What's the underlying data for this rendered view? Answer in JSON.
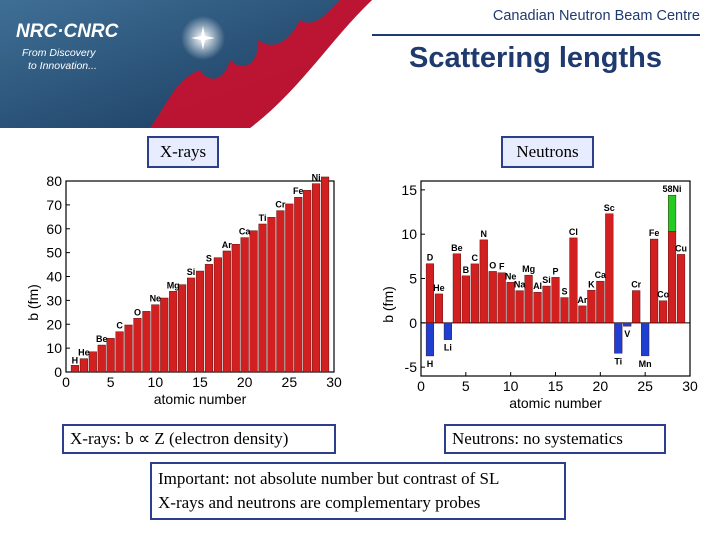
{
  "header": {
    "org_title": "Canadian Neutron Beam Centre",
    "slide_title": "Scattering lengths",
    "logo_text": "NRC·CNRC",
    "tagline_line1": "From Discovery",
    "tagline_line2": "to Innovation...",
    "accent_color": "#c8102e",
    "title_color": "#1f3a6e"
  },
  "panels": {
    "xray_tag": "X-rays",
    "neutron_tag": "Neutrons",
    "xray_caption": "X-rays: b ∝ Z (electron density)",
    "neutron_caption": "Neutrons: no systematics",
    "note_line1": "Important: not absolute number but contrast of SL",
    "note_line2": "X-rays and neutrons are complementary probes"
  },
  "chart_data": [
    {
      "type": "bar",
      "xlabel": "atomic number",
      "ylabel": "b (fm)",
      "xlim": [
        0,
        30
      ],
      "ylim": [
        0,
        80
      ],
      "xticks": [
        0,
        5,
        10,
        15,
        20,
        25,
        30
      ],
      "yticks": [
        0,
        10,
        20,
        30,
        40,
        50,
        60,
        70,
        80
      ],
      "bar_color": "#d21f1f",
      "x": [
        1,
        2,
        3,
        4,
        5,
        6,
        7,
        8,
        9,
        10,
        11,
        12,
        13,
        14,
        15,
        16,
        17,
        18,
        19,
        20,
        21,
        22,
        23,
        24,
        25,
        26,
        27,
        28,
        29
      ],
      "values": [
        2.8,
        5.6,
        8.5,
        11.3,
        14.1,
        16.9,
        19.7,
        22.5,
        25.4,
        28.2,
        31.0,
        33.8,
        36.6,
        39.4,
        42.3,
        45.1,
        47.9,
        50.7,
        53.5,
        56.3,
        59.2,
        62.0,
        64.8,
        67.6,
        70.4,
        73.2,
        76.1,
        78.9,
        81.7
      ],
      "element_labels": [
        {
          "label": "H",
          "x": 1
        },
        {
          "label": "He",
          "x": 2
        },
        {
          "label": "Be",
          "x": 4
        },
        {
          "label": "C",
          "x": 6
        },
        {
          "label": "O",
          "x": 8
        },
        {
          "label": "Ne",
          "x": 10
        },
        {
          "label": "Mg",
          "x": 12
        },
        {
          "label": "Si",
          "x": 14
        },
        {
          "label": "S",
          "x": 16
        },
        {
          "label": "Ar",
          "x": 18
        },
        {
          "label": "Ca",
          "x": 20
        },
        {
          "label": "Ti",
          "x": 22
        },
        {
          "label": "Cr",
          "x": 24
        },
        {
          "label": "Fe",
          "x": 26
        },
        {
          "label": "Ni",
          "x": 28
        }
      ]
    },
    {
      "type": "bar",
      "xlabel": "atomic number",
      "ylabel": "b (fm)",
      "xlim": [
        0,
        30
      ],
      "ylim": [
        -6,
        16
      ],
      "xticks": [
        0,
        5,
        10,
        15,
        20,
        25,
        30
      ],
      "yticks": [
        -5,
        0,
        5,
        10,
        15
      ],
      "positive_color": "#d21f1f",
      "negative_color": "#1f3fd2",
      "highlight_color": "#22cc22",
      "x": [
        1,
        2,
        3,
        4,
        5,
        6,
        7,
        8,
        9,
        10,
        11,
        12,
        13,
        14,
        15,
        16,
        17,
        18,
        19,
        20,
        21,
        22,
        23,
        24,
        25,
        26,
        27,
        28,
        29
      ],
      "values": [
        -3.74,
        3.26,
        -1.9,
        7.79,
        5.3,
        6.65,
        9.36,
        5.8,
        5.65,
        4.57,
        3.63,
        5.38,
        3.45,
        4.15,
        5.13,
        2.85,
        9.58,
        1.91,
        3.67,
        4.7,
        12.3,
        -3.44,
        -0.38,
        3.64,
        -3.73,
        9.45,
        2.49,
        10.3,
        7.72
      ],
      "extra_segments": [
        {
          "x": 1,
          "from": 0,
          "to": 6.67,
          "label": "D"
        },
        {
          "x": 28,
          "from": 10.3,
          "to": 14.4,
          "label": "58Ni"
        }
      ],
      "element_labels": [
        {
          "label": "H",
          "x": 1
        },
        {
          "label": "D",
          "x": 1
        },
        {
          "label": "He",
          "x": 2
        },
        {
          "label": "Li",
          "x": 3
        },
        {
          "label": "Be",
          "x": 4
        },
        {
          "label": "B",
          "x": 5
        },
        {
          "label": "C",
          "x": 6
        },
        {
          "label": "N",
          "x": 7
        },
        {
          "label": "O",
          "x": 8
        },
        {
          "label": "F",
          "x": 9
        },
        {
          "label": "Ne",
          "x": 10
        },
        {
          "label": "Na",
          "x": 11
        },
        {
          "label": "Mg",
          "x": 12
        },
        {
          "label": "Al",
          "x": 13
        },
        {
          "label": "Si",
          "x": 14
        },
        {
          "label": "P",
          "x": 15
        },
        {
          "label": "S",
          "x": 16
        },
        {
          "label": "Cl",
          "x": 17
        },
        {
          "label": "Ar",
          "x": 18
        },
        {
          "label": "K",
          "x": 19
        },
        {
          "label": "Ca",
          "x": 20
        },
        {
          "label": "Sc",
          "x": 21
        },
        {
          "label": "Ti",
          "x": 22
        },
        {
          "label": "V",
          "x": 23
        },
        {
          "label": "Cr",
          "x": 24
        },
        {
          "label": "Mn",
          "x": 25
        },
        {
          "label": "Fe",
          "x": 26
        },
        {
          "label": "Co",
          "x": 27
        },
        {
          "label": "58Ni",
          "x": 28
        },
        {
          "label": "Cu",
          "x": 29
        }
      ]
    }
  ]
}
